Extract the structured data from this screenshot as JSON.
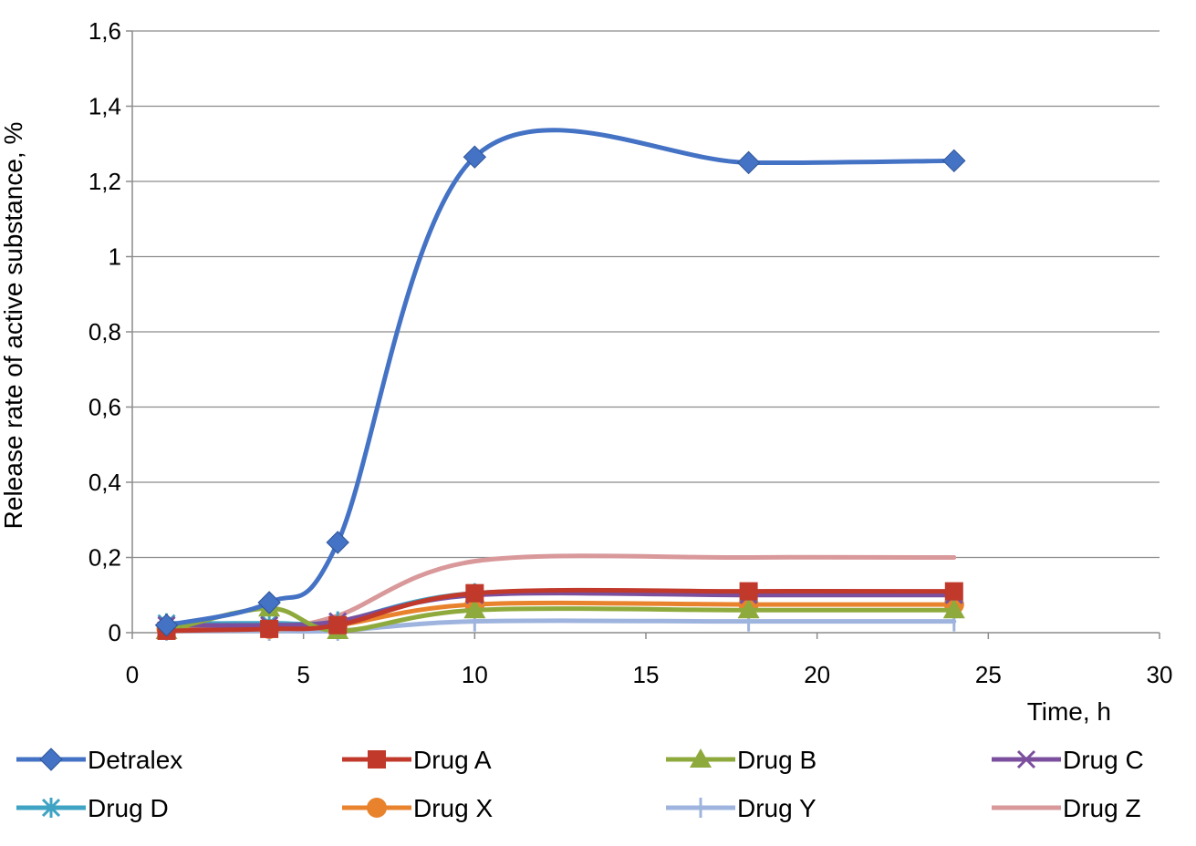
{
  "chart_data": {
    "type": "line",
    "title": "",
    "xlabel": "Time, h",
    "ylabel": "Release rate of active substance, %",
    "xlim": [
      0,
      30
    ],
    "ylim": [
      0,
      1.6
    ],
    "x_ticks": [
      0,
      5,
      10,
      15,
      20,
      25,
      30
    ],
    "y_ticks": [
      0,
      0.2,
      0.4,
      0.6,
      0.8,
      1.0,
      1.2,
      1.4,
      1.6
    ],
    "x_tick_labels": [
      "0",
      "5",
      "10",
      "15",
      "20",
      "25",
      "30"
    ],
    "y_tick_labels": [
      "0",
      "0,2",
      "0,4",
      "0,6",
      "0,8",
      "1",
      "1,2",
      "1,4",
      "1,6"
    ],
    "grid": "horizontal",
    "legend_position": "bottom",
    "smooth": true,
    "x": [
      1,
      4,
      6,
      10,
      18,
      24
    ],
    "series": [
      {
        "name": "Detralex",
        "color": "#4472C4",
        "marker": "diamond",
        "values": [
          0.02,
          0.08,
          0.24,
          1.265,
          1.25,
          1.255
        ]
      },
      {
        "name": "Drug A",
        "color": "#C0392B",
        "marker": "square",
        "values": [
          0.005,
          0.01,
          0.02,
          0.105,
          0.11,
          0.11
        ]
      },
      {
        "name": "Drug B",
        "color": "#8FAA3C",
        "marker": "triangle",
        "values": [
          0.005,
          0.065,
          0.005,
          0.06,
          0.06,
          0.06
        ]
      },
      {
        "name": "Drug C",
        "color": "#7B4F9E",
        "marker": "x",
        "values": [
          0.02,
          0.02,
          0.03,
          0.1,
          0.1,
          0.1
        ]
      },
      {
        "name": "Drug D",
        "color": "#3FA3C4",
        "marker": "asterisk",
        "values": [
          0.025,
          0.025,
          0.03,
          0.105,
          0.105,
          0.105
        ]
      },
      {
        "name": "Drug X",
        "color": "#E8822C",
        "marker": "circle",
        "values": [
          0.01,
          0.01,
          0.02,
          0.075,
          0.075,
          0.075
        ]
      },
      {
        "name": "Drug Y",
        "color": "#9EB4DE",
        "marker": "plus",
        "values": [
          0.005,
          0.005,
          0.005,
          0.03,
          0.03,
          0.03
        ]
      },
      {
        "name": "Drug Z",
        "color": "#D9989A",
        "marker": "none",
        "values": [
          0.01,
          0.015,
          0.045,
          0.19,
          0.2,
          0.2
        ]
      }
    ]
  }
}
